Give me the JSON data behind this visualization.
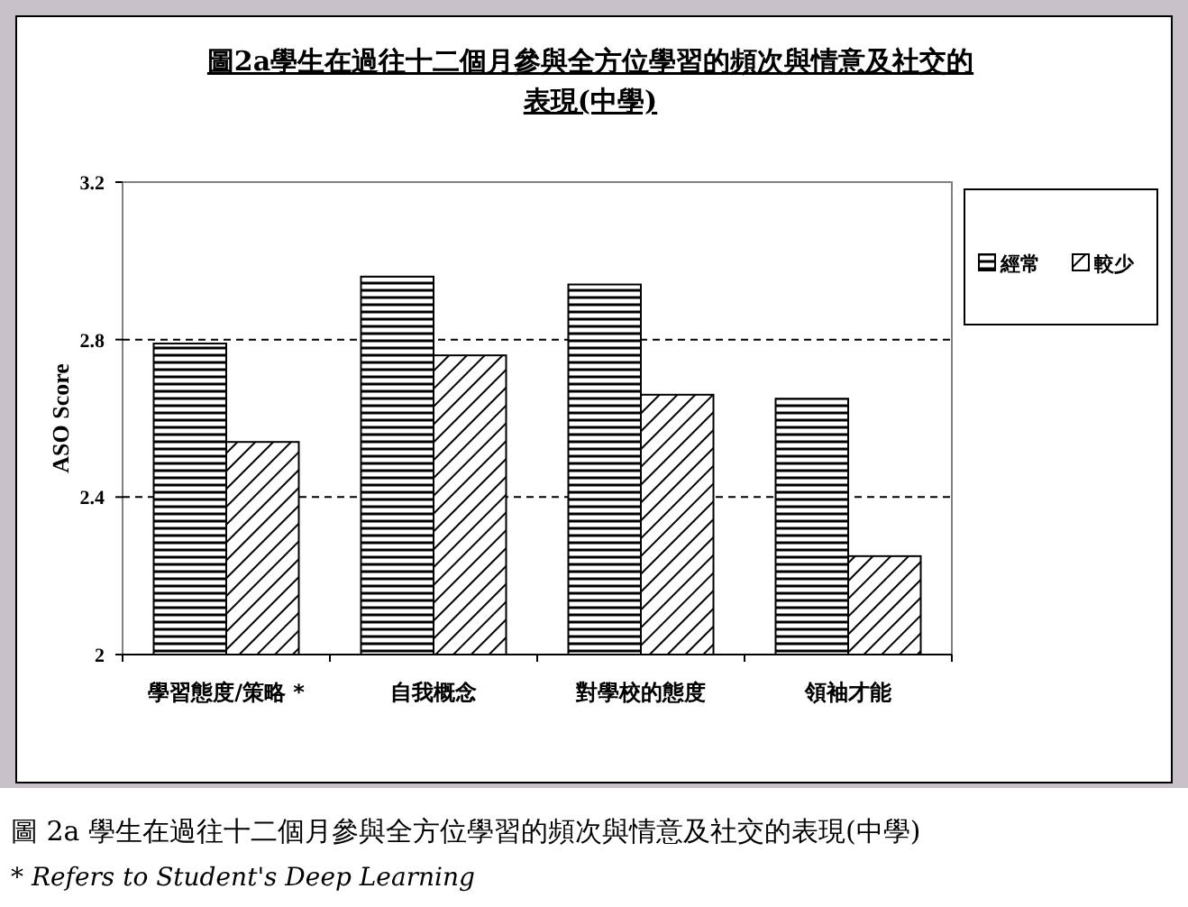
{
  "chart_data": {
    "type": "bar",
    "title": "圖2a學生在過往十二個月參與全方位學習的頻次與情意及社交的表現(中學)",
    "ylabel": "ASO Score",
    "categories": [
      "學習態度/策略 *",
      "自我概念",
      "對學校的態度",
      "領袖才能"
    ],
    "series": [
      {
        "name": "經常",
        "color": "#000000",
        "values": [
          2.79,
          2.96,
          2.94,
          2.65
        ]
      },
      {
        "name": "較少",
        "color": "#000000",
        "values": [
          2.54,
          2.76,
          2.66,
          2.25
        ]
      }
    ],
    "ylim": [
      2,
      3.2
    ],
    "yticks": [
      2,
      2.4,
      2.8,
      3.2
    ],
    "grid": "y",
    "legend": "right",
    "annotations": [
      "圖 2a 學生在過往十二個月參與全方位學習的頻次與情意及社交的表現(中學)",
      "* Refers to Student's Deep Learning"
    ]
  }
}
